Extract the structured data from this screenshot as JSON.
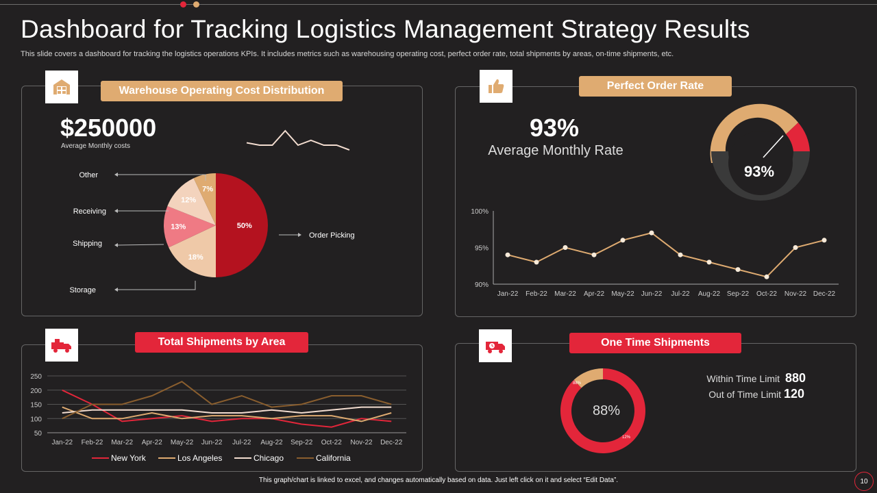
{
  "header": {
    "title": "Dashboard for Tracking Logistics Management Strategy Results",
    "subtitle": "This slide covers a dashboard for tracking the logistics operations KPIs. It includes metrics such as warehousing operating cost, perfect order rate, total shipments by areas, on-time shipments, etc."
  },
  "colors": {
    "accent_red": "#e3263a",
    "accent_tan": "#dfab71",
    "background": "#222021"
  },
  "warehouse": {
    "label": "Warehouse Operating Cost Distribution",
    "icon": "warehouse-icon",
    "kpi_value": "$250000",
    "kpi_caption": "Average Monthly costs",
    "sparkline": [
      3,
      2,
      2,
      8,
      2,
      4,
      2,
      2,
      0
    ]
  },
  "perfect_order": {
    "label": "Perfect Order Rate",
    "icon": "thumbs-up-icon",
    "kpi_value": "93%",
    "kpi_caption": "Average Monthly Rate",
    "gauge_value": "93%"
  },
  "shipments": {
    "label": "Total Shipments by Area",
    "icon": "delivery-truck-icon"
  },
  "ontime": {
    "label": "One Time Shipments",
    "icon": "truck-clock-icon",
    "center_label": "88%",
    "slice_main_label": "88%",
    "slice_minor_label": "12%",
    "within_label": "Within Time Limit",
    "within_value": "880",
    "out_label": "Out of Time Limit",
    "out_value": "120"
  },
  "chart_data": [
    {
      "type": "pie",
      "categories": [
        "Order Picking",
        "Storage",
        "Shipping",
        "Receiving",
        "Other"
      ],
      "values": [
        50,
        18,
        13,
        12,
        7
      ],
      "labels": [
        "50%",
        "18%",
        "13%",
        "12%",
        "7%"
      ],
      "colors": [
        "#b4121f",
        "#efc9a8",
        "#ef7a84",
        "#f3d3bd",
        "#dfab71"
      ]
    },
    {
      "type": "line",
      "categories": [
        "Jan-22",
        "Feb-22",
        "Mar-22",
        "Apr-22",
        "May-22",
        "Jun-22",
        "Jul-22",
        "Aug-22",
        "Sep-22",
        "Oct-22",
        "Nov-22",
        "Dec-22"
      ],
      "values": [
        94,
        93,
        95,
        94,
        96,
        97,
        94,
        93,
        92,
        91,
        95,
        96
      ],
      "yticks": [
        "100%",
        "95%",
        "90%"
      ],
      "ylim": [
        90,
        100
      ],
      "color": "#dfab71"
    },
    {
      "type": "line",
      "categories": [
        "Jan-22",
        "Feb-22",
        "Mar-22",
        "Apr-22",
        "May-22",
        "Jun-22",
        "Jul-22",
        "Aug-22",
        "Sep-22",
        "Oct-22",
        "Nov-22",
        "Dec-22"
      ],
      "yticks": [
        "250",
        "200",
        "150",
        "100",
        "50"
      ],
      "ylim": [
        50,
        250
      ],
      "legend_position": "bottom",
      "series": [
        {
          "name": "New York",
          "color": "#e3263a",
          "values": [
            200,
            150,
            90,
            100,
            110,
            90,
            100,
            100,
            80,
            70,
            100,
            90
          ]
        },
        {
          "name": "Los Angeles",
          "color": "#dfab71",
          "values": [
            140,
            100,
            100,
            120,
            100,
            110,
            110,
            100,
            110,
            110,
            90,
            120
          ]
        },
        {
          "name": "Chicago",
          "color": "#f3ddd0",
          "values": [
            120,
            130,
            130,
            130,
            130,
            120,
            120,
            130,
            120,
            130,
            140,
            140
          ]
        },
        {
          "name": "California",
          "color": "#8a5e2e",
          "values": [
            100,
            150,
            150,
            180,
            230,
            150,
            180,
            140,
            150,
            180,
            180,
            150
          ]
        }
      ]
    },
    {
      "type": "pie",
      "categories": [
        "Within Time Limit",
        "Out of Time Limit"
      ],
      "values": [
        88,
        12
      ],
      "colors": [
        "#e3263a",
        "#dfab71"
      ]
    }
  ],
  "footer": {
    "note": "This graph/chart is linked to excel, and changes automatically based on data. Just left click on it and select “Edit Data”.",
    "page_number": "10"
  }
}
